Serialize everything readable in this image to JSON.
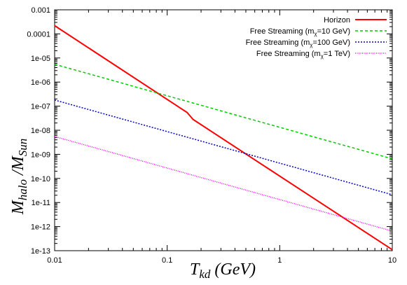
{
  "chart_data": {
    "type": "line",
    "title": "",
    "xlabel": {
      "main": "T",
      "sub": "kd",
      "rest": " (GeV)"
    },
    "ylabel": {
      "m1": "M",
      "s1": "halo",
      "sep": " /M",
      "s2": "Sun"
    },
    "xscale": "log",
    "yscale": "log",
    "xlim": [
      0.01,
      10
    ],
    "ylim": [
      1e-13,
      0.001
    ],
    "grid": false,
    "legend_position": "top-right",
    "x_ticks": [
      {
        "value": 0.01,
        "label": "0.01"
      },
      {
        "value": 0.1,
        "label": "0.1"
      },
      {
        "value": 1,
        "label": "1"
      },
      {
        "value": 10,
        "label": "10"
      }
    ],
    "y_ticks": [
      {
        "value": 0.001,
        "label": "0.001"
      },
      {
        "value": 0.0001,
        "label": "0.0001"
      },
      {
        "value": 1e-05,
        "label": "1e-05"
      },
      {
        "value": 1e-06,
        "label": "1e-06"
      },
      {
        "value": 1e-07,
        "label": "1e-07"
      },
      {
        "value": 1e-08,
        "label": "1e-08"
      },
      {
        "value": 1e-09,
        "label": "1e-09"
      },
      {
        "value": 1e-10,
        "label": "1e-10"
      },
      {
        "value": 1e-11,
        "label": "1e-11"
      },
      {
        "value": 1e-12,
        "label": "1e-12"
      },
      {
        "value": 1e-13,
        "label": "1e-13"
      }
    ],
    "series": [
      {
        "name": "Horizon",
        "legend": {
          "pre": "Horizon",
          "sub": "",
          "post": ""
        },
        "color": "#ff0000",
        "dash": "solid",
        "points": [
          [
            0.01,
            0.00022
          ],
          [
            0.15,
            5.5e-08
          ],
          [
            0.17,
            2.8e-08
          ],
          [
            10,
            1.1e-13
          ]
        ]
      },
      {
        "name": "Free Streaming (mχ=10 GeV)",
        "legend": {
          "pre": "Free Streaming (m",
          "sub": "χ",
          "post": "=10 GeV)"
        },
        "color": "#00cc00",
        "dash": "dashed",
        "points": [
          [
            0.01,
            5.5e-06
          ],
          [
            10,
            6.5e-10
          ]
        ]
      },
      {
        "name": "Free Streaming (mχ=100 GeV)",
        "legend": {
          "pre": "Free Streaming (m",
          "sub": "χ",
          "post": "=100 GeV)"
        },
        "color": "#0000cc",
        "dash": "dotted",
        "points": [
          [
            0.01,
            1.8e-07
          ],
          [
            10,
            2.1e-11
          ]
        ]
      },
      {
        "name": "Free Streaming (mχ=1 TeV)",
        "legend": {
          "pre": "Free Streaming (m",
          "sub": "χ",
          "post": "=1 TeV)"
        },
        "color": "#ff00ff",
        "dash": "dotted-fine",
        "points": [
          [
            0.01,
            5.5e-09
          ],
          [
            10,
            6.5e-13
          ]
        ]
      }
    ]
  }
}
